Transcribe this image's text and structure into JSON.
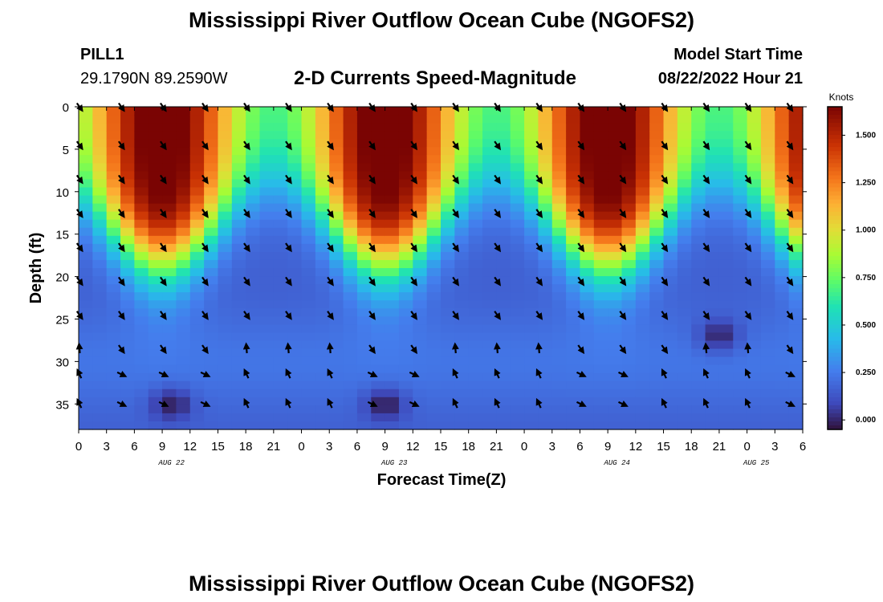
{
  "title": "Mississippi River Outflow Ocean Cube (NGOFS2)",
  "footer_title": "Mississippi River Outflow Ocean Cube (NGOFS2)",
  "station": {
    "id": "PILL1",
    "coords": "29.1790N  89.2590W"
  },
  "chart_subtitle": "2-D Currents Speed-Magnitude",
  "model": {
    "label": "Model Start Time",
    "time": "08/22/2022 Hour 21"
  },
  "chart_data": {
    "type": "heatmap",
    "title": "2-D Currents Speed-Magnitude",
    "xlabel": "Forecast Time(Z)",
    "ylabel": "Depth (ft)",
    "x_ticks": [
      "0",
      "3",
      "6",
      "9",
      "12",
      "15",
      "18",
      "21",
      "0",
      "3",
      "6",
      "9",
      "12",
      "15",
      "18",
      "21",
      "0",
      "3",
      "6",
      "9",
      "12",
      "15",
      "18",
      "21",
      "0",
      "3",
      "6"
    ],
    "x_range_hours": [
      0,
      78
    ],
    "date_labels": [
      {
        "label": "AUG 22",
        "hour": 10
      },
      {
        "label": "AUG 23",
        "hour": 34
      },
      {
        "label": "AUG 24",
        "hour": 58
      },
      {
        "label": "AUG 25",
        "hour": 73
      }
    ],
    "y_ticks": [
      "0",
      "5",
      "10",
      "15",
      "20",
      "25",
      "30",
      "35"
    ],
    "y_range_ft": [
      0,
      38
    ],
    "y_inverted": true,
    "colorbar": {
      "title": "Knots",
      "ticks": [
        "1.500",
        "1.250",
        "1.000",
        "0.750",
        "0.500",
        "0.250",
        "0.000"
      ],
      "range": [
        -0.05,
        1.65
      ]
    },
    "surface_speed_peaks_hours": [
      9,
      33,
      57,
      78
    ],
    "surface_speed_troughs_hours": [
      24,
      48,
      72
    ],
    "bottom_minimum_points": [
      {
        "hour": 10,
        "depth": 35,
        "speed": 0.0
      },
      {
        "hour": 33,
        "depth": 35,
        "speed": 0.0
      },
      {
        "hour": 69,
        "depth": 27,
        "speed": 0.05
      }
    ],
    "vector_hours": [
      0,
      4.5,
      9,
      13.5,
      18,
      22.5,
      27,
      31.5,
      36,
      40.5,
      45,
      49.5,
      54,
      58.5,
      63,
      67.5,
      72,
      76.5
    ],
    "vector_depths": [
      0,
      4.5,
      8.5,
      12.5,
      16.5,
      20.5,
      24.5,
      28.5,
      31.5,
      35
    ]
  }
}
